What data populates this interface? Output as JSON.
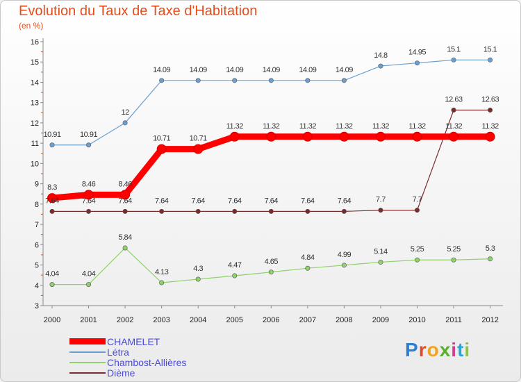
{
  "colors": {
    "title": "#e44d1a",
    "legend_text": "#4a4adf"
  },
  "header": {
    "title": "Evolution du Taux de Taxe d'Habitation",
    "unit": "(en %)"
  },
  "brand": {
    "letters": [
      "P",
      "r",
      "o",
      "x",
      "i",
      "t",
      "i"
    ],
    "colors": [
      "#2f7fd0",
      "#e04b2a",
      "#f2a31b",
      "#5ab02d",
      "#d43c8e",
      "#2aa5d6",
      "#8dc63f"
    ]
  },
  "chart_data": {
    "type": "line",
    "title": "Evolution du Taux de Taxe d'Habitation",
    "ylabel": "(en %)",
    "xlabel": "",
    "categories": [
      "2000",
      "2001",
      "2002",
      "2003",
      "2004",
      "2005",
      "2006",
      "2007",
      "2008",
      "2009",
      "2010",
      "2011",
      "2012"
    ],
    "ylim": [
      3,
      16
    ],
    "yticks": [
      "3",
      "4",
      "5",
      "6",
      "7",
      "8",
      "9",
      "10",
      "11",
      "12",
      "13",
      "14",
      "15",
      "16"
    ],
    "grid": false,
    "legend_position": "bottom-left",
    "series": [
      {
        "name": "CHAMELET",
        "color": "#ff0000",
        "values": [
          8.3,
          8.46,
          8.46,
          10.71,
          10.71,
          11.32,
          11.32,
          11.32,
          11.32,
          11.32,
          11.32,
          11.32,
          11.32
        ],
        "labels": [
          "8.3",
          "8.46",
          "8.46",
          "10.71",
          "10.71",
          "11.32",
          "11.32",
          "11.32",
          "11.32",
          "11.32",
          "11.32",
          "11.32",
          "11.32"
        ]
      },
      {
        "name": "Létra",
        "color": "#6a9fd0",
        "values": [
          10.91,
          10.91,
          12,
          14.09,
          14.09,
          14.09,
          14.09,
          14.09,
          14.09,
          14.8,
          14.95,
          15.1,
          15.1
        ],
        "labels": [
          "10.91",
          "10.91",
          "12",
          "14.09",
          "14.09",
          "14.09",
          "14.09",
          "14.09",
          "14.09",
          "14.8",
          "14.95",
          "15.1",
          "15.1"
        ]
      },
      {
        "name": "Chambost-Allières",
        "color": "#8fd16a",
        "values": [
          4.04,
          4.04,
          5.84,
          4.13,
          4.3,
          4.47,
          4.65,
          4.84,
          4.99,
          5.14,
          5.25,
          5.25,
          5.3
        ],
        "labels": [
          "4.04",
          "4.04",
          "5.84",
          "4.13",
          "4.3",
          "4.47",
          "4.65",
          "4.84",
          "4.99",
          "5.14",
          "5.25",
          "5.25",
          "5.3"
        ]
      },
      {
        "name": "Dième",
        "color": "#7a2b2b",
        "values": [
          7.64,
          7.64,
          7.64,
          7.64,
          7.64,
          7.64,
          7.64,
          7.64,
          7.64,
          7.7,
          7.7,
          12.63,
          12.63
        ],
        "labels": [
          "7.64",
          "7.64",
          "7.64",
          "7.64",
          "7.64",
          "7.64",
          "7.64",
          "7.64",
          "7.64",
          "7.7",
          "7.7",
          "12.63",
          "12.63"
        ]
      }
    ]
  }
}
